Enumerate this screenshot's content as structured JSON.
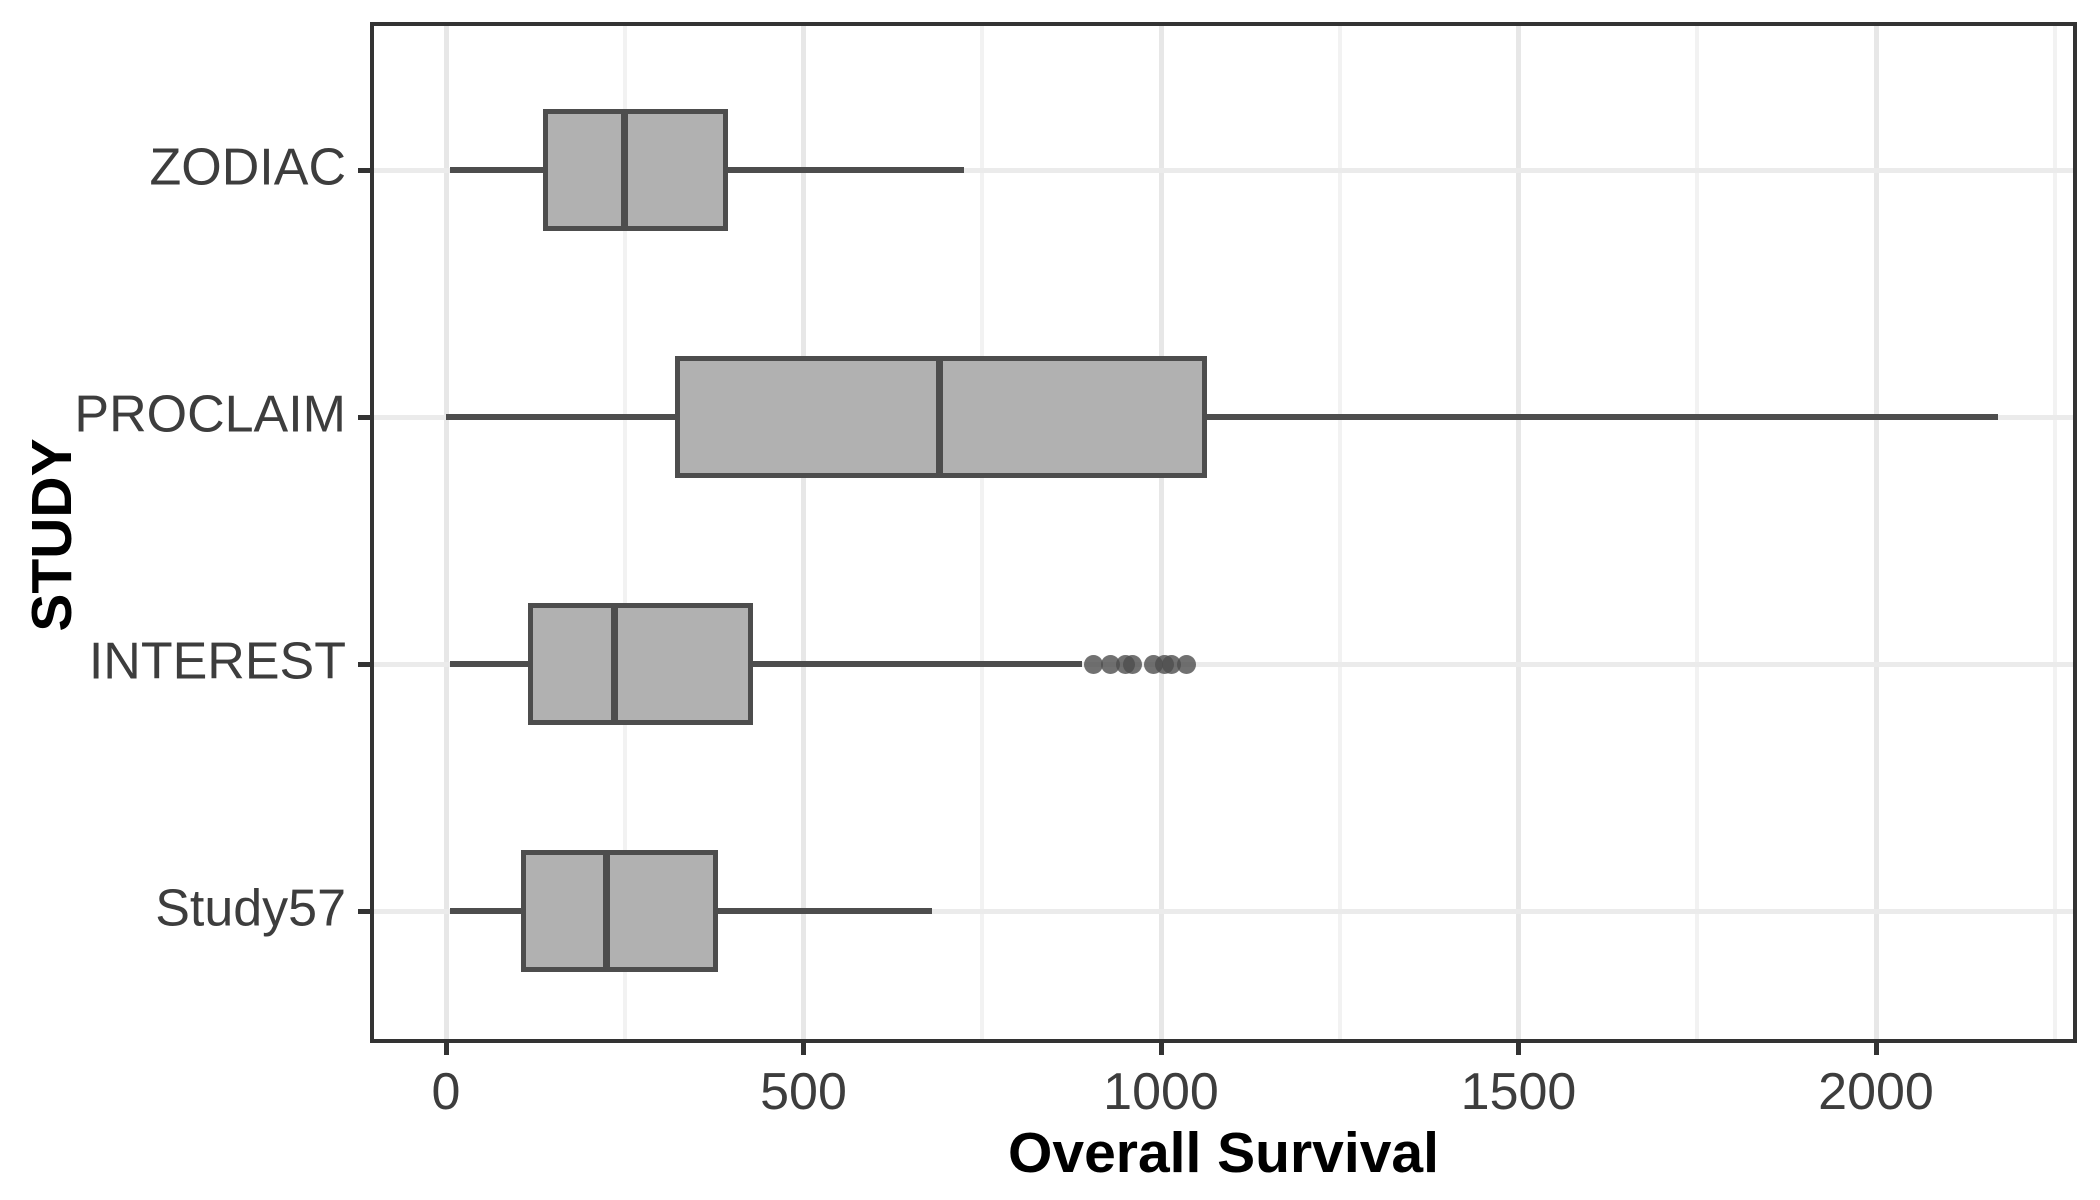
{
  "chart_data": {
    "type": "boxplot",
    "orientation": "horizontal",
    "title": "",
    "xlabel": "Overall Survival",
    "ylabel": "STUDY",
    "categories": [
      "ZODIAC",
      "PROCLAIM",
      "INTEREST",
      "Study57"
    ],
    "series": [
      {
        "name": "ZODIAC",
        "min": 5,
        "q1": 135,
        "median": 250,
        "q3": 395,
        "max": 725,
        "outliers": []
      },
      {
        "name": "PROCLAIM",
        "min": 0,
        "q1": 320,
        "median": 690,
        "q3": 1065,
        "max": 2170,
        "outliers": []
      },
      {
        "name": "INTEREST",
        "min": 5,
        "q1": 115,
        "median": 235,
        "q3": 430,
        "max": 890,
        "outliers": [
          905,
          930,
          950,
          960,
          990,
          1005,
          1015,
          1035
        ]
      },
      {
        "name": "Study57",
        "min": 5,
        "q1": 105,
        "median": 225,
        "q3": 380,
        "max": 680,
        "outliers": []
      }
    ],
    "x_ticks": [
      0,
      500,
      1000,
      1500,
      2000
    ],
    "x_minor_ticks": [
      250,
      750,
      1250,
      1750,
      2250
    ],
    "xlim": [
      -106,
      2276
    ],
    "grid": "major-and-minor-vertical, major-horizontal",
    "legend": "none",
    "colors": {
      "box_fill": "#b1b1b1",
      "box_border": "#4d4d4d",
      "median": "#4d4d4d",
      "whisker": "#4d4d4d",
      "outlier": "rgba(77,77,77,0.8)",
      "panel_border": "#333333",
      "grid_major": "#e7e7e7",
      "grid_minor": "#f2f2f2",
      "grid_horizontal": "#ebebeb",
      "tick_mark": "#333333",
      "tick_label": "#3d3d3d",
      "axis_title": "#000000",
      "background": "#ffffff"
    }
  }
}
